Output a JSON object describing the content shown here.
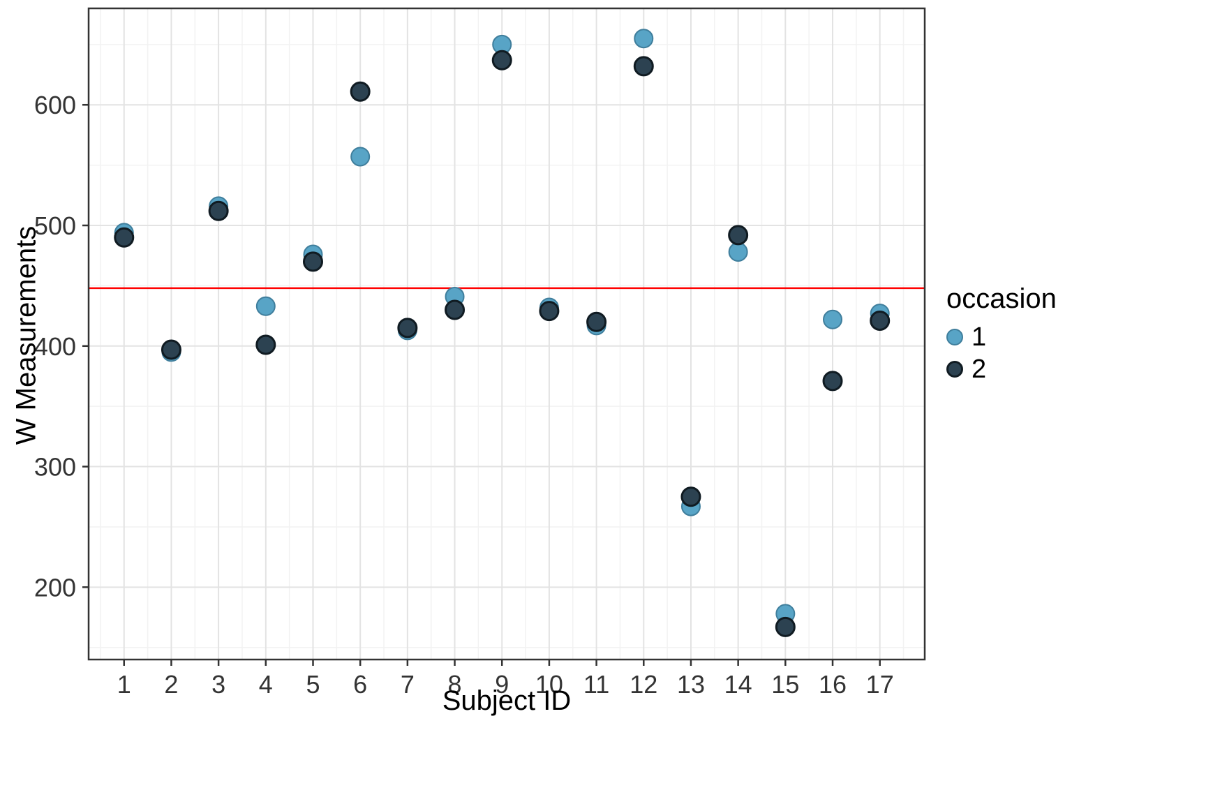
{
  "figure": {
    "x_axis_title": "Subject ID",
    "y_axis_title": "W Measurements",
    "legend": {
      "title": "occasion",
      "items": [
        {
          "label": "1",
          "color": "#58A4C6",
          "stroke": "#3F7E9C"
        },
        {
          "label": "2",
          "color": "#2C4251",
          "stroke": "#101B22"
        }
      ]
    }
  },
  "chart_data": {
    "type": "scatter",
    "title": "",
    "xlabel": "Subject ID",
    "ylabel": "W Measurements",
    "x_ticks": [
      1,
      2,
      3,
      4,
      5,
      6,
      7,
      8,
      9,
      10,
      11,
      12,
      13,
      14,
      15,
      16,
      17
    ],
    "y_ticks": [
      200,
      300,
      400,
      500,
      600
    ],
    "y_minor_ticks": [
      150,
      250,
      350,
      450,
      550,
      650
    ],
    "xlim": [
      0.25,
      17.95
    ],
    "ylim": [
      140,
      680
    ],
    "grid": true,
    "legend_position": "right",
    "reference_line": {
      "y": 448,
      "color": "#FF0000"
    },
    "categories": [
      1,
      2,
      3,
      4,
      5,
      6,
      7,
      8,
      9,
      10,
      11,
      12,
      13,
      14,
      15,
      16,
      17
    ],
    "series": [
      {
        "name": "1",
        "color": "#58A4C6",
        "stroke": "#3F7E9C",
        "x": [
          1,
          2,
          3,
          4,
          5,
          6,
          7,
          8,
          9,
          10,
          11,
          12,
          13,
          14,
          15,
          16,
          17
        ],
        "y": [
          494,
          395,
          516,
          433,
          476,
          557,
          413,
          441,
          650,
          432,
          417,
          655,
          267,
          478,
          178,
          422,
          427
        ]
      },
      {
        "name": "2",
        "color": "#2C4251",
        "stroke": "#101B22",
        "x": [
          1,
          2,
          3,
          4,
          5,
          6,
          7,
          8,
          9,
          10,
          11,
          12,
          13,
          14,
          15,
          16,
          17
        ],
        "y": [
          490,
          397,
          512,
          401,
          470,
          611,
          415,
          430,
          637,
          429,
          420,
          632,
          275,
          492,
          167,
          371,
          421
        ]
      }
    ],
    "panel": {
      "background": "#FFFFFF",
      "border_color": "#333333",
      "grid_major_color": "#E3E3E3",
      "grid_minor_color": "#F2F2F2",
      "tick_color": "#333333",
      "tick_label_color": "#333333"
    }
  }
}
